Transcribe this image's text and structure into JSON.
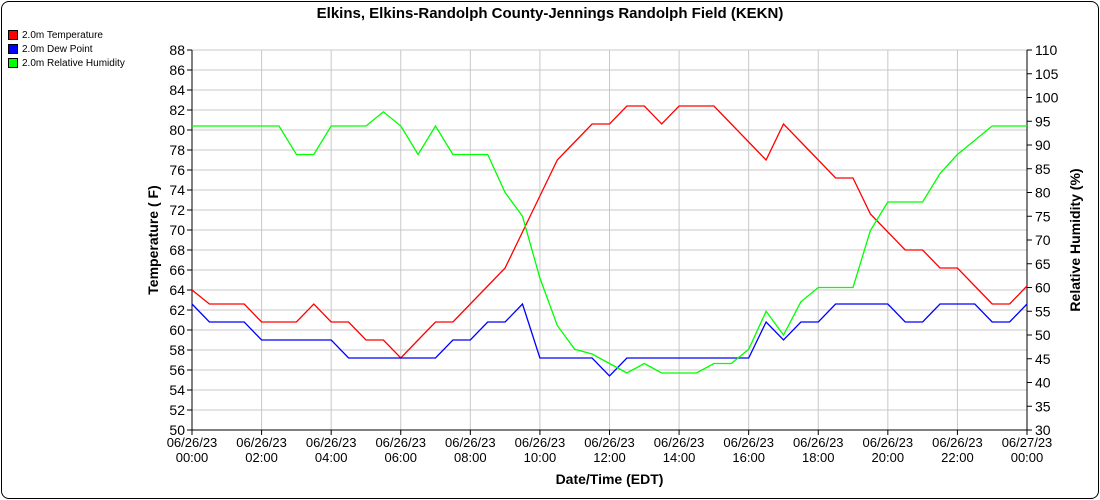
{
  "chart_data": {
    "type": "line",
    "title": "Elkins, Elkins-Randolph County-Jennings Randolph Field (KEKN)",
    "xlabel": "Date/Time (EDT)",
    "ylabel": "Temperature ( F)",
    "y2label": "Relative Humidity (%)",
    "ylim": [
      50,
      88
    ],
    "y2lim": [
      30,
      110
    ],
    "ytick_step": 2,
    "y2tick_step": 5,
    "grid": true,
    "legend_position": "top-left",
    "x_hours": [
      0,
      0.5,
      1,
      1.5,
      2,
      2.5,
      3,
      3.5,
      4,
      4.5,
      5,
      5.5,
      6,
      6.5,
      7,
      7.5,
      8,
      8.5,
      9,
      9.5,
      10,
      10.5,
      11,
      11.5,
      12,
      12.5,
      13,
      13.5,
      14,
      14.5,
      15,
      15.5,
      16,
      16.5,
      17,
      17.5,
      18,
      18.5,
      19,
      19.5,
      20,
      20.5,
      21,
      21.5,
      22,
      22.5,
      23,
      23.5,
      24
    ],
    "xtick_labels": [
      [
        "06/26/23",
        "00:00"
      ],
      [
        "06/26/23",
        "02:00"
      ],
      [
        "06/26/23",
        "04:00"
      ],
      [
        "06/26/23",
        "06:00"
      ],
      [
        "06/26/23",
        "08:00"
      ],
      [
        "06/26/23",
        "10:00"
      ],
      [
        "06/26/23",
        "12:00"
      ],
      [
        "06/26/23",
        "14:00"
      ],
      [
        "06/26/23",
        "16:00"
      ],
      [
        "06/26/23",
        "18:00"
      ],
      [
        "06/26/23",
        "20:00"
      ],
      [
        "06/26/23",
        "22:00"
      ],
      [
        "06/27/23",
        "00:00"
      ]
    ],
    "series": [
      {
        "name": "2.0m Temperature",
        "color": "#ff0000",
        "axis": "left",
        "values": [
          64,
          62.6,
          62.6,
          62.6,
          60.8,
          60.8,
          60.8,
          62.6,
          60.8,
          60.8,
          59,
          59,
          57.2,
          59,
          60.8,
          60.8,
          62.6,
          64.4,
          66.2,
          69.8,
          73.4,
          77,
          78.8,
          80.6,
          80.6,
          82.4,
          82.4,
          80.6,
          82.4,
          82.4,
          82.4,
          80.6,
          78.8,
          77,
          80.6,
          78.8,
          77,
          75.2,
          75.2,
          71.6,
          69.8,
          68,
          68,
          66.2,
          66.2,
          64.4,
          62.6,
          62.6,
          64.4
        ]
      },
      {
        "name": "2.0m Dew Point",
        "color": "#0000ff",
        "axis": "left",
        "values": [
          62.6,
          60.8,
          60.8,
          60.8,
          59,
          59,
          59,
          59,
          59,
          57.2,
          57.2,
          57.2,
          57.2,
          57.2,
          57.2,
          59,
          59,
          60.8,
          60.8,
          62.6,
          57.2,
          57.2,
          57.2,
          57.2,
          55.4,
          57.2,
          57.2,
          57.2,
          57.2,
          57.2,
          57.2,
          57.2,
          57.2,
          60.8,
          59,
          60.8,
          60.8,
          62.6,
          62.6,
          62.6,
          62.6,
          60.8,
          60.8,
          62.6,
          62.6,
          62.6,
          60.8,
          60.8,
          62.6
        ]
      },
      {
        "name": "2.0m Relative Humidity",
        "color": "#00ff00",
        "axis": "right",
        "values": [
          94,
          94,
          94,
          94,
          94,
          94,
          88,
          88,
          94,
          94,
          94,
          97,
          94,
          88,
          94,
          88,
          88,
          88,
          80,
          75,
          62,
          52,
          47,
          46,
          44,
          42,
          44,
          42,
          42,
          42,
          44,
          44,
          47,
          55,
          50,
          57,
          60,
          60,
          60,
          72,
          78,
          78,
          78,
          84,
          88,
          91,
          94,
          94,
          94
        ]
      }
    ]
  }
}
